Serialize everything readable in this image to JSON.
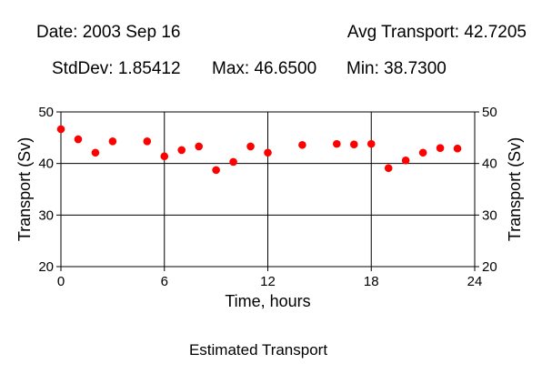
{
  "header": {
    "date": "Date: 2003 Sep 16",
    "avg": "Avg Transport: 42.7205",
    "stddev": "StdDev: 1.85412",
    "max": "Max: 46.6500",
    "min": "Min: 38.7300"
  },
  "caption": "Estimated Transport",
  "colors": {
    "marker": "#ff0000",
    "axis": "#000000",
    "background": "#ffffff"
  },
  "chart_data": {
    "type": "scatter",
    "title": "",
    "xlabel": "Time, hours",
    "ylabel": "Transport (Sv)",
    "ylabel_right": "Transport (Sv)",
    "xlim": [
      0,
      24
    ],
    "ylim": [
      20,
      50
    ],
    "xticks": [
      "0",
      "6",
      "12",
      "18",
      "24"
    ],
    "yticks": [
      "20",
      "30",
      "40",
      "50"
    ],
    "grid": true,
    "series": [
      {
        "x": [
          0,
          1,
          2,
          3,
          5,
          6,
          7,
          8,
          9,
          10,
          11,
          12,
          14,
          16,
          17,
          18,
          19,
          20,
          21,
          22,
          23
        ],
        "y": [
          46.65,
          44.7,
          42.1,
          44.3,
          44.3,
          41.4,
          42.6,
          43.3,
          38.73,
          40.3,
          43.3,
          42.1,
          43.6,
          43.8,
          43.7,
          43.8,
          39.1,
          40.6,
          42.1,
          43.0,
          42.9
        ]
      }
    ]
  }
}
